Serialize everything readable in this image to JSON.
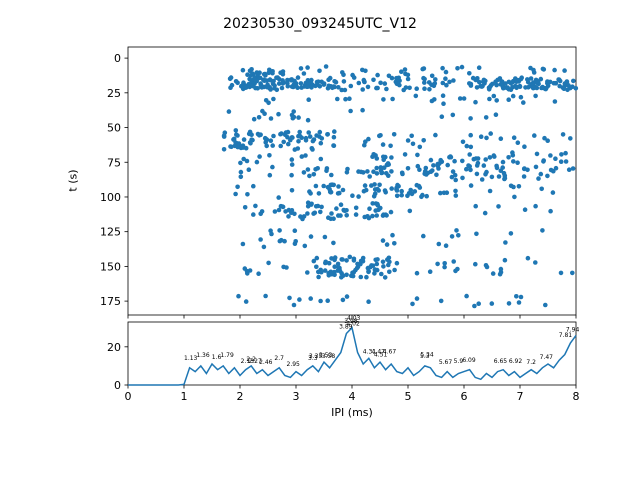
{
  "figure": {
    "title": "20230530_093245UTC_V12",
    "background": "#ffffff",
    "accent_color": "#1f77b4"
  },
  "chart_data": [
    {
      "type": "scatter",
      "title": "20230530_093245UTC_V12",
      "xlabel": "",
      "ylabel": "t (s)",
      "xlim": [
        0,
        8
      ],
      "ylim": [
        -8,
        185
      ],
      "y_inverted": true,
      "xticks": [
        0,
        1,
        2,
        3,
        4,
        5,
        6,
        7,
        8
      ],
      "yticks": [
        0,
        25,
        50,
        75,
        100,
        125,
        150,
        175
      ],
      "marker_color": "#1f77b4",
      "marker_radius": 2.3,
      "seed": 20230530,
      "bands": [
        {
          "t": [
            6,
            13
          ],
          "x": [
            2.0,
            7.9
          ],
          "n": 40
        },
        {
          "t": [
            8,
            13
          ],
          "x": [
            2.1,
            2.8
          ],
          "n": 12
        },
        {
          "t": [
            14,
            23
          ],
          "x": [
            1.8,
            8.0
          ],
          "n": 150
        },
        {
          "t": [
            15,
            22
          ],
          "x": [
            1.9,
            3.7
          ],
          "n": 55
        },
        {
          "t": [
            15,
            22
          ],
          "x": [
            6.2,
            8.0
          ],
          "n": 55
        },
        {
          "t": [
            27,
            33
          ],
          "x": [
            1.9,
            7.7
          ],
          "n": 26
        },
        {
          "t": [
            37,
            46
          ],
          "x": [
            1.8,
            4.3
          ],
          "n": 15
        },
        {
          "t": [
            39,
            44
          ],
          "x": [
            5.4,
            7.1
          ],
          "n": 5
        },
        {
          "t": [
            52,
            66
          ],
          "x": [
            1.7,
            3.7
          ],
          "n": 80
        },
        {
          "t": [
            54,
            64
          ],
          "x": [
            4.0,
            8.0
          ],
          "n": 30
        },
        {
          "t": [
            68,
            88
          ],
          "x": [
            4.3,
            8.0
          ],
          "n": 115
        },
        {
          "t": [
            70,
            86
          ],
          "x": [
            1.9,
            4.3
          ],
          "n": 32
        },
        {
          "t": [
            91,
            100
          ],
          "x": [
            3.2,
            5.3
          ],
          "n": 45
        },
        {
          "t": [
            90,
            101
          ],
          "x": [
            1.9,
            8.0
          ],
          "n": 26
        },
        {
          "t": [
            104,
            116
          ],
          "x": [
            2.7,
            4.7
          ],
          "n": 52
        },
        {
          "t": [
            105,
            115
          ],
          "x": [
            1.9,
            8.0
          ],
          "n": 18
        },
        {
          "t": [
            124,
            136
          ],
          "x": [
            2.0,
            7.7
          ],
          "n": 30
        },
        {
          "t": [
            143,
            158
          ],
          "x": [
            3.3,
            4.7
          ],
          "n": 65
        },
        {
          "t": [
            144,
            156
          ],
          "x": [
            1.8,
            8.0
          ],
          "n": 38
        },
        {
          "t": [
            171,
            179
          ],
          "x": [
            1.8,
            7.8
          ],
          "n": 24
        }
      ]
    },
    {
      "type": "line",
      "xlabel": "IPI (ms)",
      "ylabel": "",
      "xlim": [
        0,
        8
      ],
      "ylim": [
        0,
        33
      ],
      "xticks": [
        0,
        1,
        2,
        3,
        4,
        5,
        6,
        7,
        8
      ],
      "yticks": [
        0,
        20
      ],
      "line_color": "#1f77b4",
      "x_start": 0,
      "x_step": 0.1,
      "y": [
        0,
        0,
        0,
        0,
        0,
        0,
        0,
        0,
        0,
        0,
        0.3,
        9,
        7,
        10,
        6,
        11,
        8,
        10,
        6,
        9,
        5,
        8,
        10,
        6,
        8,
        5,
        7,
        9,
        5,
        4,
        7,
        5,
        8,
        10,
        7,
        12,
        9,
        13,
        17,
        27,
        30,
        17,
        11,
        14,
        9,
        12,
        8,
        11,
        7,
        6,
        9,
        5,
        7,
        10,
        9,
        5,
        4,
        7,
        4,
        6,
        7,
        8,
        4,
        3,
        6,
        4,
        7,
        8,
        5,
        7,
        4,
        6,
        8,
        6,
        9,
        11,
        9,
        13,
        16,
        22,
        26
      ],
      "annotations": [
        {
          "label": "1.13",
          "x": 1.12,
          "y": 12
        },
        {
          "label": "1.36",
          "x": 1.34,
          "y": 13.5
        },
        {
          "label": "1.6",
          "x": 1.58,
          "y": 12.5
        },
        {
          "label": "1.79",
          "x": 1.77,
          "y": 13.5
        },
        {
          "label": "2.13",
          "x": 2.13,
          "y": 10.5
        },
        {
          "label": "2.2",
          "x": 2.2,
          "y": 11.5
        },
        {
          "label": "2.27",
          "x": 2.27,
          "y": 10.5
        },
        {
          "label": "2.46",
          "x": 2.46,
          "y": 10
        },
        {
          "label": "2.7",
          "x": 2.7,
          "y": 12
        },
        {
          "label": "2.95",
          "x": 2.95,
          "y": 9
        },
        {
          "label": "3.3",
          "x": 3.3,
          "y": 12
        },
        {
          "label": "3.35",
          "x": 3.35,
          "y": 13
        },
        {
          "label": "3.53",
          "x": 3.53,
          "y": 13.5
        },
        {
          "label": "3.58",
          "x": 3.58,
          "y": 13
        },
        {
          "label": "3.89",
          "x": 3.89,
          "y": 28.5
        },
        {
          "label": "3.98",
          "x": 3.98,
          "y": 31.5
        },
        {
          "label": "4.03",
          "x": 4.03,
          "y": 33
        },
        {
          "label": "4.02",
          "x": 4.02,
          "y": 30
        },
        {
          "label": "4.31",
          "x": 4.31,
          "y": 15.5
        },
        {
          "label": "4.47",
          "x": 4.47,
          "y": 15.5
        },
        {
          "label": "4.51",
          "x": 4.51,
          "y": 14
        },
        {
          "label": "4.67",
          "x": 4.67,
          "y": 15.5
        },
        {
          "label": "5.3",
          "x": 5.3,
          "y": 13
        },
        {
          "label": "5.34",
          "x": 5.34,
          "y": 13.8
        },
        {
          "label": "5.67",
          "x": 5.67,
          "y": 10
        },
        {
          "label": "5.9",
          "x": 5.9,
          "y": 10.5
        },
        {
          "label": "6.09",
          "x": 6.09,
          "y": 11
        },
        {
          "label": "6.65",
          "x": 6.65,
          "y": 10.5
        },
        {
          "label": "6.92",
          "x": 6.92,
          "y": 10.5
        },
        {
          "label": "7.2",
          "x": 7.2,
          "y": 10
        },
        {
          "label": "7.47",
          "x": 7.47,
          "y": 12.5
        },
        {
          "label": "7.81",
          "x": 7.81,
          "y": 24
        },
        {
          "label": "7.94",
          "x": 7.94,
          "y": 27
        }
      ]
    }
  ]
}
